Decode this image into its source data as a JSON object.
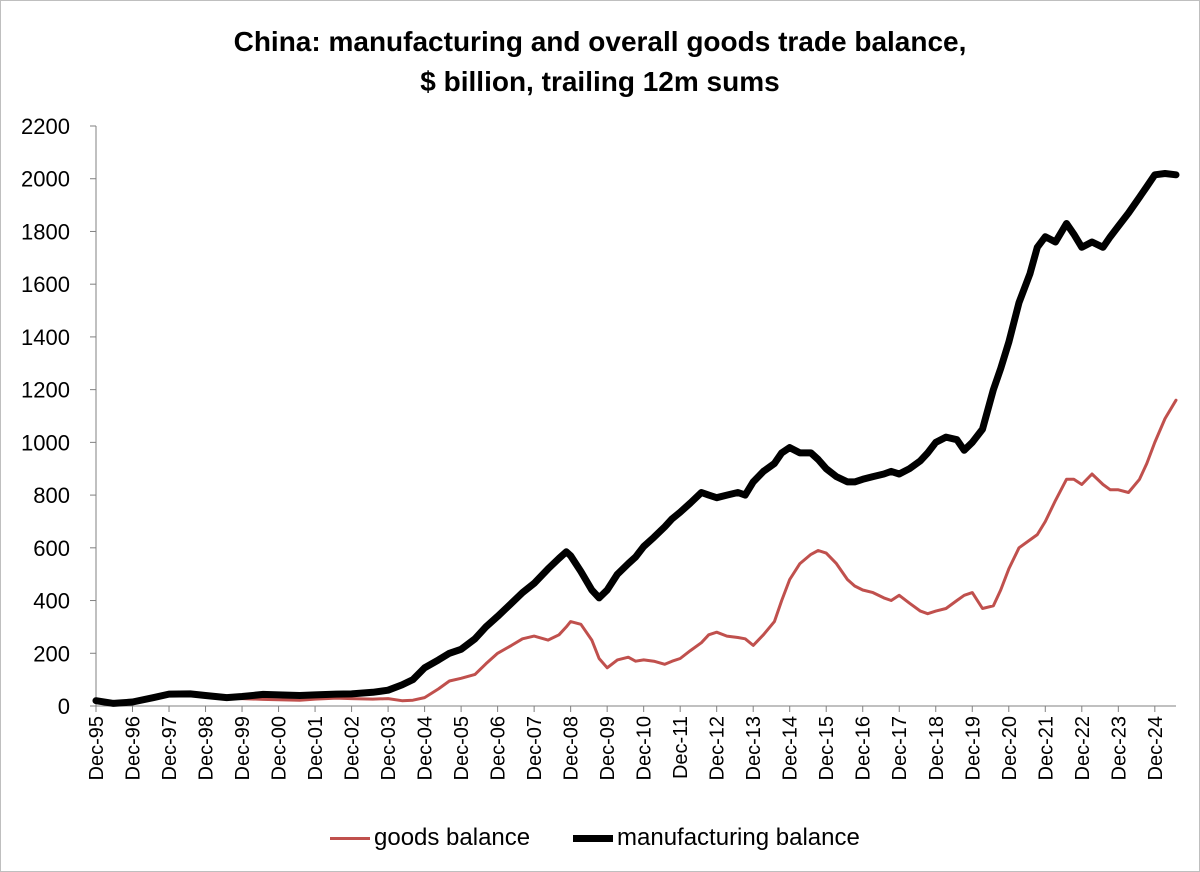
{
  "chart_data": {
    "type": "line",
    "title_line1": "China: manufacturing and overall goods trade balance,",
    "title_line2": "$ billion, trailing 12m sums",
    "xlabel": "",
    "ylabel": "",
    "ylim": [
      0,
      2200
    ],
    "xlim": [
      1995.92,
      2025.5
    ],
    "yticks": [
      "0",
      "200",
      "400",
      "600",
      "800",
      "1000",
      "1200",
      "1400",
      "1600",
      "1800",
      "2000",
      "2200"
    ],
    "xticks": [
      "Dec-95",
      "Dec-96",
      "Dec-97",
      "Dec-98",
      "Dec-99",
      "Dec-00",
      "Dec-01",
      "Dec-02",
      "Dec-03",
      "Dec-04",
      "Dec-05",
      "Dec-06",
      "Dec-07",
      "Dec-08",
      "Dec-09",
      "Dec-10",
      "Dec-11",
      "Dec-12",
      "Dec-13",
      "Dec-14",
      "Dec-15",
      "Dec-16",
      "Dec-17",
      "Dec-18",
      "Dec-19",
      "Dec-20",
      "Dec-21",
      "Dec-22",
      "Dec-23",
      "Dec-24"
    ],
    "legend_position": "bottom",
    "series": [
      {
        "name": "goods balance",
        "color": "#c0504d",
        "x": [
          1995.92,
          1996.4,
          1996.92,
          1997.5,
          1997.92,
          1998.5,
          1998.92,
          1999.5,
          1999.92,
          2000.5,
          2000.92,
          2001.5,
          2001.92,
          2002.5,
          2002.92,
          2003.5,
          2003.92,
          2004.3,
          2004.6,
          2004.92,
          2005.3,
          2005.6,
          2005.92,
          2006.3,
          2006.6,
          2006.92,
          2007.3,
          2007.6,
          2007.92,
          2008.3,
          2008.6,
          2008.8,
          2008.92,
          2009.2,
          2009.5,
          2009.7,
          2009.92,
          2010.2,
          2010.5,
          2010.7,
          2010.92,
          2011.2,
          2011.5,
          2011.7,
          2011.92,
          2012.2,
          2012.5,
          2012.7,
          2012.92,
          2013.2,
          2013.5,
          2013.7,
          2013.92,
          2014.2,
          2014.5,
          2014.7,
          2014.92,
          2015.2,
          2015.5,
          2015.7,
          2015.92,
          2016.2,
          2016.5,
          2016.7,
          2016.92,
          2017.2,
          2017.5,
          2017.7,
          2017.92,
          2018.2,
          2018.5,
          2018.7,
          2018.92,
          2019.2,
          2019.5,
          2019.7,
          2019.92,
          2020.2,
          2020.5,
          2020.7,
          2020.92,
          2021.2,
          2021.5,
          2021.7,
          2021.92,
          2022.2,
          2022.5,
          2022.7,
          2022.92,
          2023.2,
          2023.5,
          2023.7,
          2023.92,
          2024.2,
          2024.5,
          2024.7,
          2024.92,
          2025.2,
          2025.5
        ],
        "values": [
          18,
          12,
          15,
          30,
          42,
          40,
          35,
          30,
          28,
          25,
          24,
          22,
          26,
          30,
          28,
          26,
          28,
          20,
          22,
          32,
          65,
          95,
          105,
          120,
          160,
          200,
          230,
          255,
          265,
          250,
          270,
          300,
          320,
          310,
          250,
          180,
          145,
          175,
          185,
          170,
          175,
          170,
          158,
          170,
          180,
          210,
          240,
          270,
          280,
          265,
          260,
          255,
          230,
          270,
          320,
          400,
          480,
          540,
          575,
          590,
          580,
          540,
          480,
          455,
          440,
          430,
          410,
          400,
          420,
          390,
          360,
          350,
          360,
          370,
          400,
          420,
          430,
          370,
          380,
          440,
          520,
          600,
          630,
          650,
          700,
          780,
          860,
          860,
          840,
          880,
          840,
          820,
          820,
          810,
          860,
          920,
          1000,
          1090,
          1160
        ]
      },
      {
        "name": "manufacturing balance",
        "color": "#000000",
        "x": [
          1995.92,
          1996.4,
          1996.92,
          1997.5,
          1997.92,
          1998.5,
          1998.92,
          1999.5,
          1999.92,
          2000.5,
          2000.92,
          2001.5,
          2001.92,
          2002.5,
          2002.92,
          2003.5,
          2003.92,
          2004.3,
          2004.6,
          2004.92,
          2005.3,
          2005.6,
          2005.92,
          2006.3,
          2006.6,
          2006.92,
          2007.3,
          2007.6,
          2007.92,
          2008.3,
          2008.6,
          2008.8,
          2008.92,
          2009.2,
          2009.5,
          2009.7,
          2009.92,
          2010.2,
          2010.5,
          2010.7,
          2010.92,
          2011.2,
          2011.5,
          2011.7,
          2011.92,
          2012.2,
          2012.5,
          2012.7,
          2012.92,
          2013.2,
          2013.5,
          2013.7,
          2013.92,
          2014.2,
          2014.5,
          2014.7,
          2014.92,
          2015.2,
          2015.5,
          2015.7,
          2015.92,
          2016.2,
          2016.5,
          2016.7,
          2016.92,
          2017.2,
          2017.5,
          2017.7,
          2017.92,
          2018.2,
          2018.5,
          2018.7,
          2018.92,
          2019.2,
          2019.5,
          2019.7,
          2019.92,
          2020.2,
          2020.5,
          2020.7,
          2020.92,
          2021.2,
          2021.5,
          2021.7,
          2021.92,
          2022.2,
          2022.5,
          2022.7,
          2022.92,
          2023.2,
          2023.5,
          2023.7,
          2023.92,
          2024.2,
          2024.5,
          2024.7,
          2024.92,
          2025.2,
          2025.5
        ],
        "values": [
          20,
          10,
          15,
          32,
          45,
          46,
          40,
          32,
          36,
          44,
          42,
          40,
          42,
          45,
          46,
          52,
          60,
          80,
          100,
          145,
          175,
          200,
          215,
          255,
          300,
          340,
          390,
          430,
          465,
          520,
          560,
          585,
          570,
          510,
          440,
          410,
          440,
          500,
          540,
          565,
          605,
          640,
          680,
          710,
          735,
          770,
          810,
          800,
          790,
          800,
          810,
          800,
          850,
          890,
          920,
          960,
          980,
          960,
          960,
          935,
          900,
          870,
          850,
          850,
          860,
          870,
          880,
          890,
          880,
          900,
          930,
          960,
          1000,
          1020,
          1010,
          970,
          1000,
          1050,
          1200,
          1280,
          1380,
          1530,
          1640,
          1740,
          1780,
          1760,
          1830,
          1790,
          1740,
          1760,
          1740,
          1780,
          1820,
          1870,
          1930,
          1970,
          2015,
          2020,
          2015
        ]
      }
    ]
  }
}
